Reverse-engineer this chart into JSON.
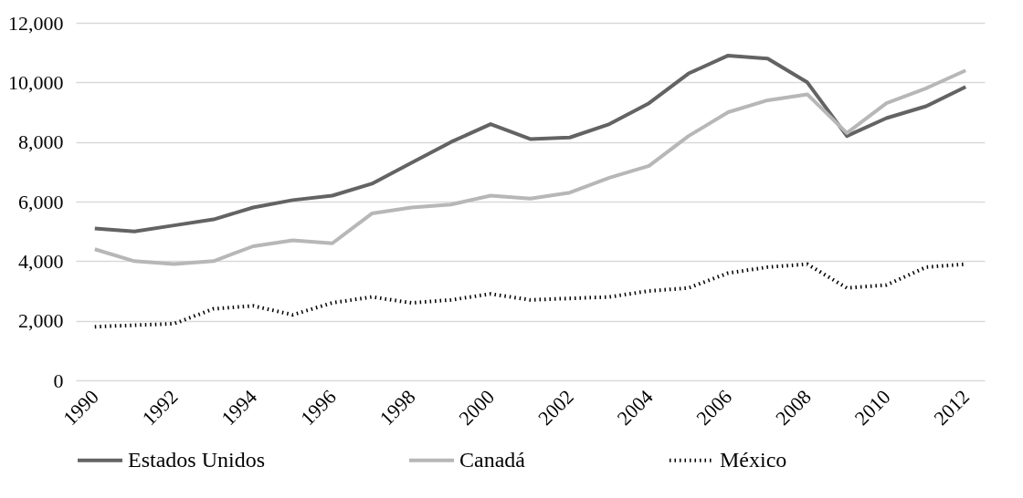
{
  "chart_data": {
    "type": "line",
    "categories": [
      "1990",
      null,
      "1992",
      null,
      "1994",
      null,
      "1996",
      null,
      "1998",
      null,
      "2000",
      null,
      "2002",
      null,
      "2004",
      null,
      "2006",
      null,
      "2008",
      null,
      "2010",
      null,
      "2012"
    ],
    "series": [
      {
        "name": "Estados Unidos",
        "color": "#636363",
        "line_style": "solid",
        "values": [
          5100,
          5000,
          5200,
          5400,
          5800,
          6050,
          6200,
          6600,
          7300,
          8000,
          8600,
          8100,
          8150,
          8600,
          9300,
          10300,
          10900,
          10800,
          10000,
          8200,
          8800,
          9200,
          9850
        ]
      },
      {
        "name": "Canadá",
        "color": "#b7b7b7",
        "line_style": "solid",
        "values": [
          4400,
          4000,
          3900,
          4000,
          4500,
          4700,
          4600,
          5600,
          5800,
          5900,
          6200,
          6100,
          6300,
          6800,
          7200,
          8200,
          9000,
          9400,
          9600,
          8300,
          9300,
          9800,
          10400
        ]
      },
      {
        "name": "México",
        "color": "#000000",
        "line_style": "dotted",
        "values": [
          1800,
          1850,
          1900,
          2400,
          2500,
          2200,
          2600,
          2800,
          2600,
          2700,
          2900,
          2700,
          2750,
          2800,
          3000,
          3100,
          3600,
          3800,
          3900,
          3100,
          3200,
          3800,
          3900
        ]
      }
    ],
    "ylim": [
      0,
      12000
    ],
    "yticks": [
      {
        "value": 0,
        "label": "0"
      },
      {
        "value": 2000,
        "label": "2,000"
      },
      {
        "value": 4000,
        "label": "4,000"
      },
      {
        "value": 6000,
        "label": "6,000"
      },
      {
        "value": 8000,
        "label": "8,000"
      },
      {
        "value": 10000,
        "label": "10,000"
      },
      {
        "value": 12000,
        "label": "12,000"
      }
    ],
    "grid": "y",
    "legend": "bottom",
    "marker": "none"
  }
}
